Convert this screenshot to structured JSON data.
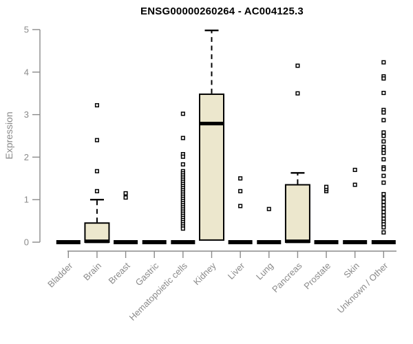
{
  "figure": {
    "title": "ENSG00000260264 - AC004125.3",
    "ylabel": "Expression"
  },
  "chart_data": {
    "type": "boxplot",
    "title": "ENSG00000260264 - AC004125.3",
    "xlabel": "",
    "ylabel": "Expression",
    "ylim": [
      0,
      5
    ],
    "yticks": [
      0,
      1,
      2,
      3,
      4,
      5
    ],
    "grid": false,
    "legend": "none",
    "box_fill_color": "#ece7cd",
    "box_stroke_color": "#000000",
    "axis_color": "#8a8a8a",
    "categories": [
      "Bladder",
      "Brain",
      "Breast",
      "Gastric",
      "Hematopoietic cells",
      "Kidney",
      "Liver",
      "Lung",
      "Pancreas",
      "Prostate",
      "Skin",
      "Unknown / Other"
    ],
    "series": [
      {
        "name": "Bladder",
        "q1": 0,
        "median": 0,
        "q3": 0,
        "whisker_high": 0,
        "outliers": []
      },
      {
        "name": "Brain",
        "q1": 0,
        "median": 0.02,
        "q3": 0.45,
        "whisker_high": 1.0,
        "outliers": [
          1.2,
          1.67,
          2.4,
          3.22
        ]
      },
      {
        "name": "Breast",
        "q1": 0,
        "median": 0,
        "q3": 0,
        "whisker_high": 0,
        "outliers": [
          1.05,
          1.15
        ]
      },
      {
        "name": "Gastric",
        "q1": 0,
        "median": 0,
        "q3": 0,
        "whisker_high": 0,
        "outliers": []
      },
      {
        "name": "Hematopoietic cells",
        "q1": 0,
        "median": 0,
        "q3": 0,
        "whisker_high": 0,
        "outliers": [
          3.02,
          2.45,
          2.07,
          2.01,
          1.83,
          1.67,
          1.62,
          1.57,
          1.52,
          1.47,
          1.42,
          1.37,
          1.32,
          1.27,
          1.22,
          1.17,
          1.12,
          1.07,
          1.02,
          0.97,
          0.92,
          0.87,
          0.82,
          0.77,
          0.72,
          0.67,
          0.62,
          0.57,
          0.52,
          0.47,
          0.42,
          0.37,
          0.32
        ]
      },
      {
        "name": "Kidney",
        "q1": 0.05,
        "median": 2.79,
        "q3": 3.48,
        "whisker_high": 4.98,
        "outliers": []
      },
      {
        "name": "Liver",
        "q1": 0,
        "median": 0,
        "q3": 0,
        "whisker_high": 0,
        "outliers": [
          1.5,
          1.2,
          0.85
        ]
      },
      {
        "name": "Lung",
        "q1": 0,
        "median": 0,
        "q3": 0,
        "whisker_high": 0,
        "outliers": [
          0.78
        ]
      },
      {
        "name": "Pancreas",
        "q1": 0,
        "median": 0.02,
        "q3": 1.35,
        "whisker_high": 1.63,
        "outliers": [
          3.5,
          4.15
        ]
      },
      {
        "name": "Prostate",
        "q1": 0,
        "median": 0,
        "q3": 0,
        "whisker_high": 0,
        "outliers": [
          1.2,
          1.25,
          1.3
        ]
      },
      {
        "name": "Skin",
        "q1": 0,
        "median": 0,
        "q3": 0,
        "whisker_high": 0,
        "outliers": [
          1.35,
          1.7
        ]
      },
      {
        "name": "Unknown / Other",
        "q1": 0,
        "median": 0,
        "q3": 0,
        "whisker_high": 0,
        "outliers": [
          4.23,
          3.9,
          3.85,
          3.51,
          3.11,
          3.05,
          2.87,
          2.58,
          2.5,
          2.37,
          2.24,
          2.16,
          2.1,
          1.95,
          1.76,
          1.72,
          1.56,
          1.4,
          1.13,
          1.03,
          0.95,
          0.87,
          0.79,
          0.71,
          0.63,
          0.55,
          0.48,
          0.42,
          0.35,
          0.23
        ]
      }
    ]
  }
}
